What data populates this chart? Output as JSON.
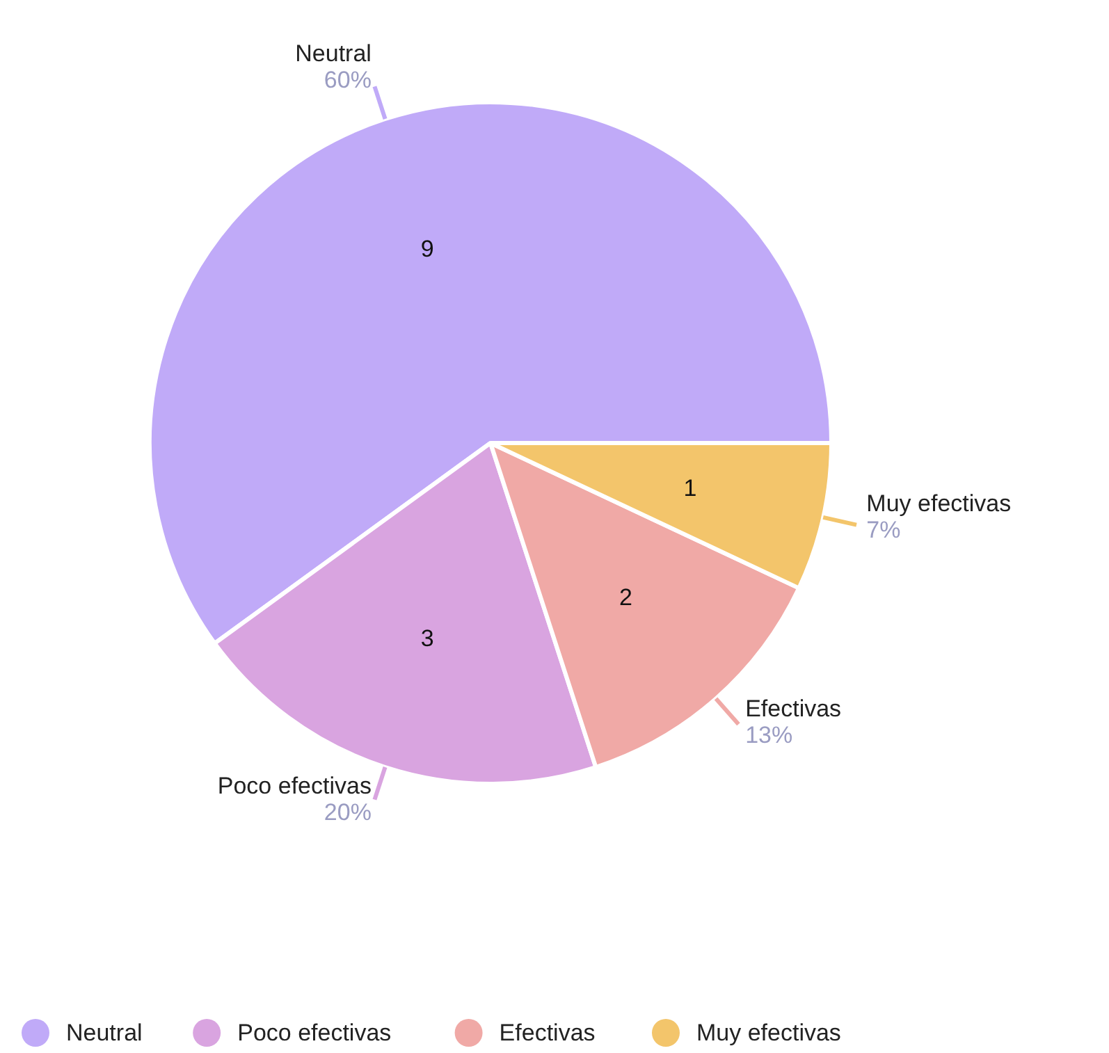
{
  "chart_data": {
    "type": "pie",
    "categories": [
      "Neutral",
      "Poco efectivas",
      "Efectivas",
      "Muy efectivas"
    ],
    "values": [
      60,
      20,
      13,
      7
    ],
    "colors": [
      "#c0aaf8",
      "#d9a4e0",
      "#f0a9a6",
      "#f3c56b"
    ],
    "value_labels": [
      "60%",
      "20%",
      "13%",
      "7%"
    ],
    "annotations": [
      {
        "text": "9",
        "x": "Neutral"
      },
      {
        "text": "3",
        "x": "Poco efectivas"
      },
      {
        "text": "2",
        "x": "Efectivas"
      },
      {
        "text": "1",
        "x": "Muy efectivas"
      }
    ],
    "legend": "bottom"
  }
}
